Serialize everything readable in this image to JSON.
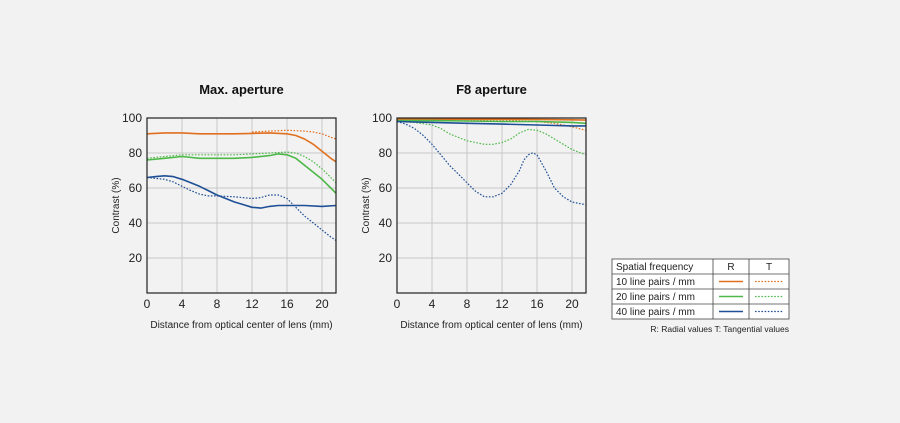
{
  "colors": {
    "red": "#e0701f",
    "green": "#4db848",
    "blue": "#1f4f96",
    "grid": "#c8c8c8",
    "frame": "#222222"
  },
  "legend": {
    "header": "Spatial frequency",
    "col_r": "R",
    "col_t": "T",
    "rows": [
      {
        "label": "10 line pairs / mm",
        "color": "#e0701f"
      },
      {
        "label": "20 line pairs / mm",
        "color": "#4db848"
      },
      {
        "label": "40 line pairs / mm",
        "color": "#1f4f96"
      }
    ],
    "note": "R: Radial values  T: Tangential values"
  },
  "chart_data": [
    {
      "type": "line",
      "title": "Max. aperture",
      "xlabel": "Distance from optical center of lens (mm)",
      "ylabel": "Contrast (%)",
      "xlim": [
        0,
        21.6
      ],
      "ylim": [
        0,
        100
      ],
      "xticks": [
        0,
        4,
        8,
        12,
        16,
        20
      ],
      "yticks": [
        20,
        40,
        60,
        80,
        100
      ],
      "grid": true,
      "series": [
        {
          "key": "10R",
          "style": "solid",
          "color": "#e0701f",
          "x": [
            0,
            2,
            4,
            6,
            8,
            10,
            12,
            14,
            16,
            17,
            18,
            19,
            20,
            21,
            21.6
          ],
          "y": [
            91,
            91.5,
            91.5,
            91,
            91,
            91,
            91.2,
            91.5,
            91,
            90,
            88,
            85,
            81,
            77,
            75
          ]
        },
        {
          "key": "10T",
          "style": "dotted",
          "color": "#e0701f",
          "x": [
            12,
            14,
            16,
            18,
            19,
            20,
            21,
            21.6
          ],
          "y": [
            92,
            92.5,
            93,
            92.5,
            92,
            91,
            89,
            88
          ]
        },
        {
          "key": "20R",
          "style": "solid",
          "color": "#4db848",
          "x": [
            0,
            2,
            4,
            6,
            8,
            10,
            12,
            14,
            15,
            16,
            17,
            18,
            19,
            20,
            21,
            21.6
          ],
          "y": [
            76,
            77,
            78,
            77,
            77,
            77,
            77.5,
            78.5,
            79.5,
            79,
            77,
            73,
            69,
            65,
            60,
            57
          ]
        },
        {
          "key": "20T",
          "style": "dotted",
          "color": "#4db848",
          "x": [
            0,
            2,
            4,
            6,
            8,
            10,
            12,
            14,
            16,
            17,
            18,
            19,
            20,
            21,
            21.6
          ],
          "y": [
            77,
            78,
            79,
            79,
            79,
            79,
            79.5,
            80,
            80.5,
            80,
            78,
            75,
            71,
            66,
            63
          ]
        },
        {
          "key": "40R",
          "style": "solid",
          "color": "#1f4f96",
          "x": [
            0,
            1,
            2,
            3,
            4,
            5,
            6,
            7,
            8,
            9,
            10,
            11,
            12,
            13,
            14,
            15,
            16,
            18,
            20,
            21.6
          ],
          "y": [
            66,
            66.5,
            67,
            66.5,
            65,
            63,
            61,
            58.5,
            56,
            54,
            52,
            50.5,
            49,
            48.5,
            49.5,
            50,
            50,
            50,
            49.5,
            50
          ]
        },
        {
          "key": "40T",
          "style": "dotted",
          "color": "#1f4f96",
          "x": [
            0,
            1,
            2,
            3,
            4,
            5,
            6,
            7,
            8,
            10,
            12,
            13,
            14,
            15,
            16,
            17,
            18,
            19,
            20,
            21,
            21.6
          ],
          "y": [
            66,
            65.5,
            65,
            63.5,
            61,
            58.5,
            56.5,
            55.5,
            55.5,
            55,
            54,
            54.5,
            56,
            56,
            54,
            49,
            44,
            40,
            36,
            32,
            30
          ]
        }
      ]
    },
    {
      "type": "line",
      "title": "F8 aperture",
      "xlabel": "Distance from optical center of lens (mm)",
      "ylabel": "Contrast (%)",
      "xlim": [
        0,
        21.6
      ],
      "ylim": [
        0,
        100
      ],
      "xticks": [
        0,
        4,
        8,
        12,
        16,
        20
      ],
      "yticks": [
        20,
        40,
        60,
        80,
        100
      ],
      "grid": true,
      "series": [
        {
          "key": "10R",
          "style": "solid",
          "color": "#e0701f",
          "x": [
            0,
            4,
            8,
            12,
            16,
            20,
            21.6
          ],
          "y": [
            99.3,
            99.3,
            99.3,
            99.3,
            99.2,
            99,
            98.8
          ]
        },
        {
          "key": "10T",
          "style": "dotted",
          "color": "#e0701f",
          "x": [
            0,
            4,
            8,
            12,
            16,
            18,
            20,
            21.6
          ],
          "y": [
            99,
            99,
            99,
            98.8,
            98,
            97,
            95,
            93
          ]
        },
        {
          "key": "20R",
          "style": "solid",
          "color": "#4db848",
          "x": [
            0,
            4,
            8,
            12,
            16,
            20,
            21.6
          ],
          "y": [
            98.5,
            98.5,
            98.3,
            98,
            98,
            97.5,
            97
          ]
        },
        {
          "key": "20T",
          "style": "dotted",
          "color": "#4db848",
          "x": [
            0,
            2,
            4,
            5,
            6,
            8,
            10,
            11,
            12,
            13,
            14,
            15,
            16,
            17,
            18,
            19,
            20,
            21,
            21.6
          ],
          "y": [
            98,
            97.5,
            96,
            94,
            91,
            87,
            85,
            85,
            86,
            88,
            91.5,
            93.5,
            93,
            91,
            88,
            85,
            82,
            80,
            79
          ]
        },
        {
          "key": "40R",
          "style": "solid",
          "color": "#1f4f96",
          "x": [
            0,
            4,
            8,
            12,
            16,
            20,
            21.6
          ],
          "y": [
            98,
            97.5,
            97,
            96.5,
            96,
            95.5,
            95.5
          ]
        },
        {
          "key": "40T",
          "style": "dotted",
          "color": "#1f4f96",
          "x": [
            0,
            1,
            2,
            3,
            4,
            5,
            6,
            7,
            8,
            9,
            10,
            11,
            12,
            13,
            14,
            14.5,
            15,
            15.5,
            16,
            17,
            18,
            19,
            20,
            21,
            21.6
          ],
          "y": [
            98,
            96.5,
            94,
            90,
            85,
            79,
            73,
            68,
            63,
            58,
            55,
            55,
            57,
            62,
            70,
            76,
            79,
            80,
            79,
            70,
            60,
            55,
            52,
            51,
            50.5
          ]
        }
      ]
    }
  ]
}
